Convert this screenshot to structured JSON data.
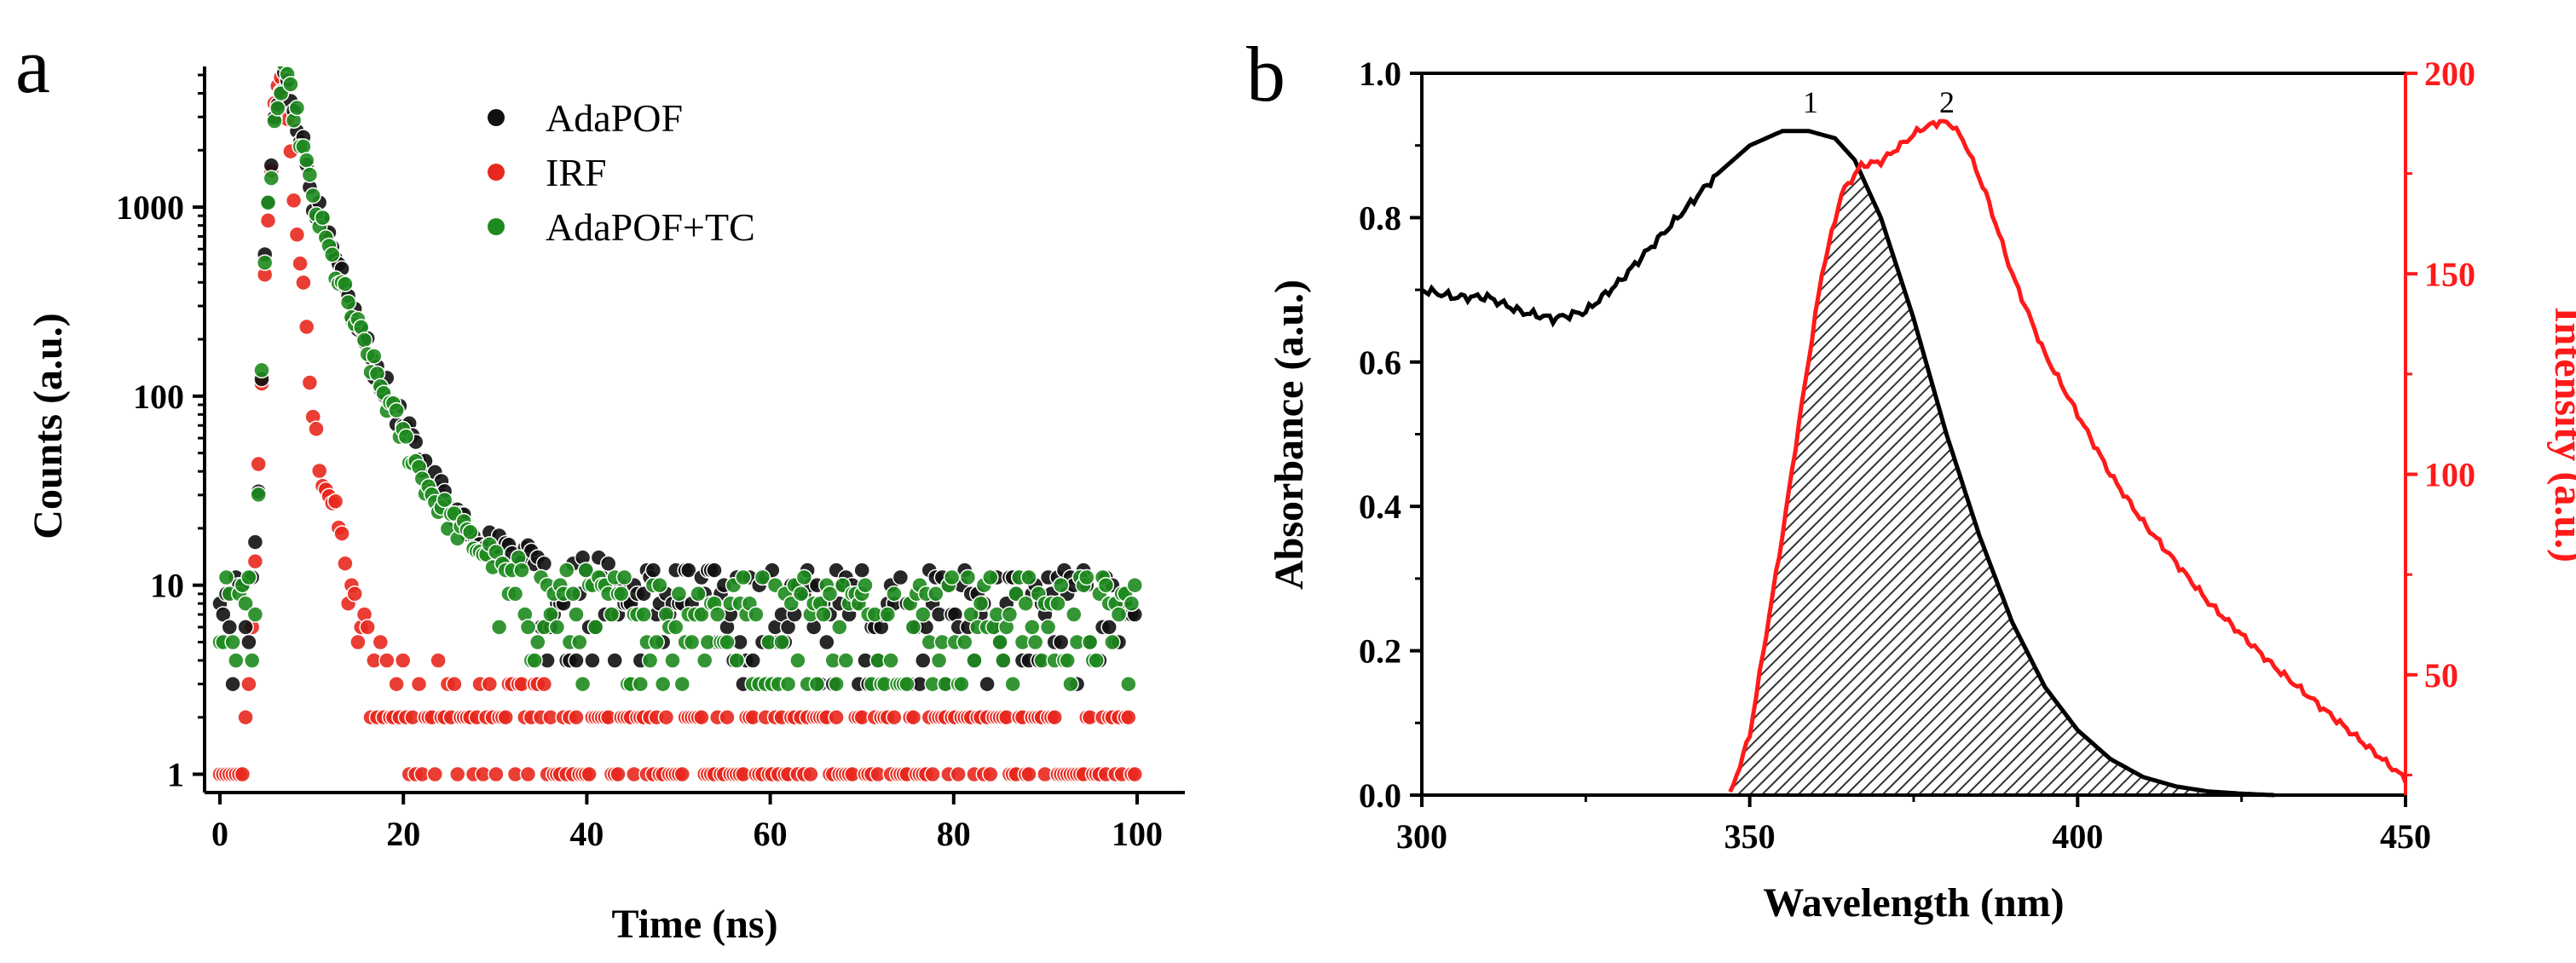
{
  "colors": {
    "adapof": "#111111",
    "irf": "#e8281e",
    "adapof_tc": "#1e8a1e",
    "absorbance": "#000000",
    "intensity": "#ff1a1a"
  },
  "panel_a": {
    "label": "a"
  },
  "panel_b": {
    "label": "b",
    "peak1": "1",
    "peak2": "2"
  },
  "chart_data": [
    {
      "type": "scatter",
      "title": "",
      "xlabel": "Time (ns)",
      "ylabel": "Counts (a.u.)",
      "yscale": "log",
      "xlim": [
        0,
        100
      ],
      "ylim": [
        0.8,
        5000
      ],
      "xticks": [
        0,
        20,
        40,
        60,
        80,
        100
      ],
      "yticks": [
        1,
        10,
        100,
        1000
      ],
      "legend": [
        "AdaPOF",
        "IRF",
        "AdaPOF+TC"
      ],
      "legend_position": "top-right",
      "series": [
        {
          "name": "AdaPOF",
          "color": "#111111",
          "x": [
            0,
            2,
            4,
            5,
            6,
            7,
            8,
            9,
            10,
            12,
            14,
            16,
            18,
            20,
            22,
            24,
            26,
            28,
            30,
            35,
            40,
            50,
            60,
            70,
            80,
            90,
            100
          ],
          "y": [
            10,
            10,
            15,
            700,
            3000,
            4800,
            3600,
            2200,
            1200,
            600,
            320,
            180,
            110,
            70,
            45,
            32,
            24,
            19,
            16,
            14,
            13,
            12,
            11,
            11,
            11,
            11,
            11
          ]
        },
        {
          "name": "IRF",
          "color": "#e8281e",
          "x": [
            0,
            2,
            3,
            4,
            5,
            6,
            7,
            8,
            9,
            10,
            11,
            12,
            13,
            14,
            15,
            16,
            18,
            20,
            22,
            25,
            30,
            40,
            60,
            80,
            100
          ],
          "y": [
            1,
            1,
            2,
            20,
            600,
            3500,
            4800,
            1200,
            400,
            90,
            40,
            30,
            20,
            12,
            9,
            7,
            5,
            4,
            4,
            3,
            3,
            2,
            2,
            2,
            2
          ]
        },
        {
          "name": "AdaPOF+TC",
          "color": "#1e8a1e",
          "x": [
            0,
            2,
            4,
            5,
            6,
            7,
            8,
            9,
            10,
            12,
            14,
            16,
            18,
            20,
            22,
            24,
            26,
            28,
            30,
            35,
            40,
            50,
            60,
            70,
            80,
            90,
            100
          ],
          "y": [
            10,
            10,
            14,
            650,
            2900,
            4800,
            3500,
            2100,
            1150,
            560,
            300,
            170,
            100,
            60,
            38,
            26,
            20,
            16,
            14,
            12,
            11,
            10,
            10,
            10,
            10,
            10,
            10
          ]
        }
      ]
    },
    {
      "type": "line",
      "title": "",
      "xlabel": "Wavelength (nm)",
      "ylabel": "Absorbance (a.u.)",
      "y2label": "Intensity (a.u.)",
      "xlim": [
        300,
        450
      ],
      "ylim": [
        0,
        1.0
      ],
      "y2lim": [
        20,
        200
      ],
      "xticks": [
        300,
        350,
        400,
        450
      ],
      "yticks": [
        0.0,
        0.2,
        0.4,
        0.6,
        0.8,
        1.0
      ],
      "y2ticks": [
        50,
        100,
        150,
        200
      ],
      "series": [
        {
          "name": "Absorbance",
          "axis": "left",
          "color": "#000000",
          "x": [
            300,
            305,
            310,
            315,
            320,
            325,
            330,
            335,
            340,
            345,
            350,
            355,
            359,
            363,
            366,
            370,
            375,
            380,
            385,
            390,
            395,
            400,
            405,
            410,
            415,
            420,
            425,
            430
          ],
          "y": [
            0.7,
            0.69,
            0.69,
            0.67,
            0.66,
            0.67,
            0.71,
            0.76,
            0.81,
            0.86,
            0.9,
            0.92,
            0.92,
            0.91,
            0.88,
            0.8,
            0.66,
            0.5,
            0.36,
            0.24,
            0.15,
            0.09,
            0.05,
            0.025,
            0.012,
            0.005,
            0.002,
            0.0
          ]
        },
        {
          "name": "Intensity",
          "axis": "right",
          "color": "#ff1a1a",
          "x": [
            347,
            350,
            352,
            355,
            358,
            361,
            364,
            367,
            370,
            373,
            376,
            379,
            381,
            383,
            386,
            390,
            395,
            400,
            405,
            410,
            415,
            420,
            425,
            430,
            435,
            440,
            445,
            450
          ],
          "y": [
            20,
            35,
            55,
            85,
            118,
            150,
            170,
            177,
            178,
            182,
            186,
            188,
            187,
            182,
            170,
            150,
            130,
            115,
            100,
            88,
            78,
            68,
            60,
            52,
            45,
            38,
            31,
            24
          ]
        }
      ],
      "annotations": [
        {
          "text": "1",
          "x": 359,
          "y": 0.92
        },
        {
          "text": "2",
          "x": 380,
          "y": 0.93
        }
      ],
      "shaded_overlap": "hatched area under both curves"
    }
  ]
}
